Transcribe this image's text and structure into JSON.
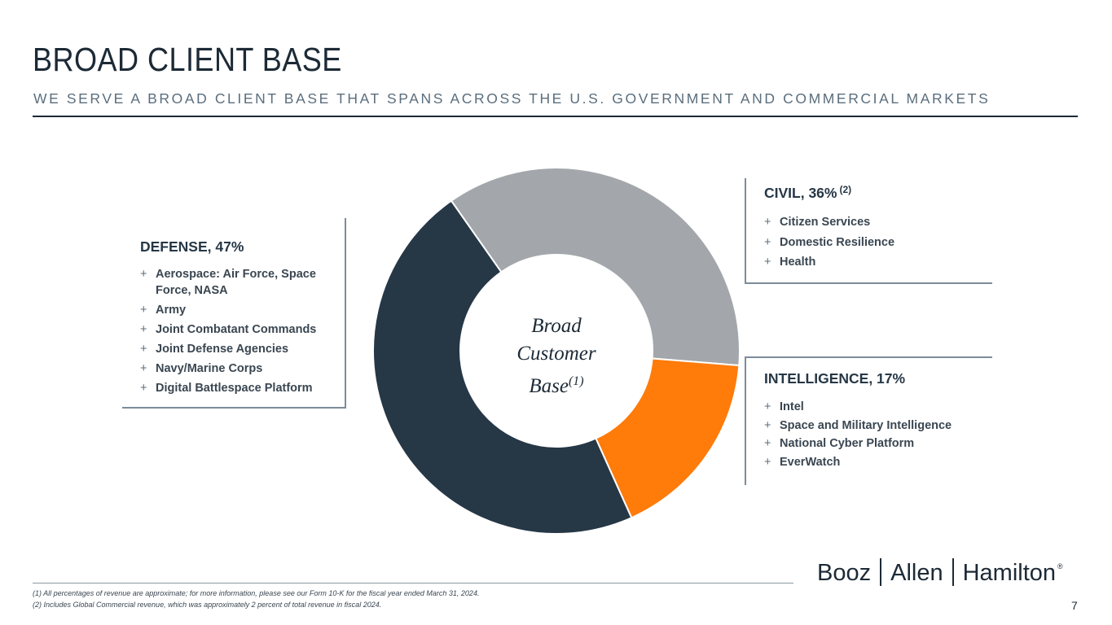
{
  "header": {
    "title": "BROAD CLIENT BASE",
    "subtitle": "WE SERVE A BROAD CLIENT BASE THAT SPANS ACROSS THE U.S. GOVERNMENT AND COMMERCIAL MARKETS"
  },
  "segments": {
    "defense": {
      "heading": "DEFENSE, 47%",
      "items": [
        "Aerospace: Air Force, Space Force, NASA",
        "Army",
        "Joint Combatant Commands",
        "Joint Defense Agencies",
        "Navy/Marine Corps",
        "Digital Battlespace Platform"
      ]
    },
    "civil": {
      "heading": "CIVIL, 36%",
      "note": "(2)",
      "items": [
        "Citizen Services",
        "Domestic Resilience",
        "Health"
      ]
    },
    "intelligence": {
      "heading": "INTELLIGENCE, 17%",
      "items": [
        "Intel",
        "Space and Military Intelligence",
        "National Cyber Platform",
        "EverWatch"
      ]
    }
  },
  "bullet_symbol": "+",
  "center_label": {
    "line1": "Broad",
    "line2": "Customer",
    "line3": "Base",
    "note": "(1)"
  },
  "footnotes": [
    "(1) All percentages of revenue are approximate; for more information, please see our Form 10-K for the fiscal year ended March 31, 2024.",
    "(2) Includes Global Commercial revenue, which was approximately 2 percent of total revenue in fiscal 2024."
  ],
  "logo": {
    "part1": "Booz",
    "part2": "Allen",
    "part3": "Hamilton",
    "mark": "®"
  },
  "page_number": "7",
  "chart_data": {
    "type": "pie",
    "title": "Broad Customer Base",
    "categories": [
      "Civil",
      "Intelligence",
      "Defense"
    ],
    "values": [
      36,
      17,
      47
    ],
    "unit": "%",
    "colors": [
      "#a3a7ab",
      "#ff7b0a",
      "#263746"
    ],
    "start_angle_deg": -35
  }
}
